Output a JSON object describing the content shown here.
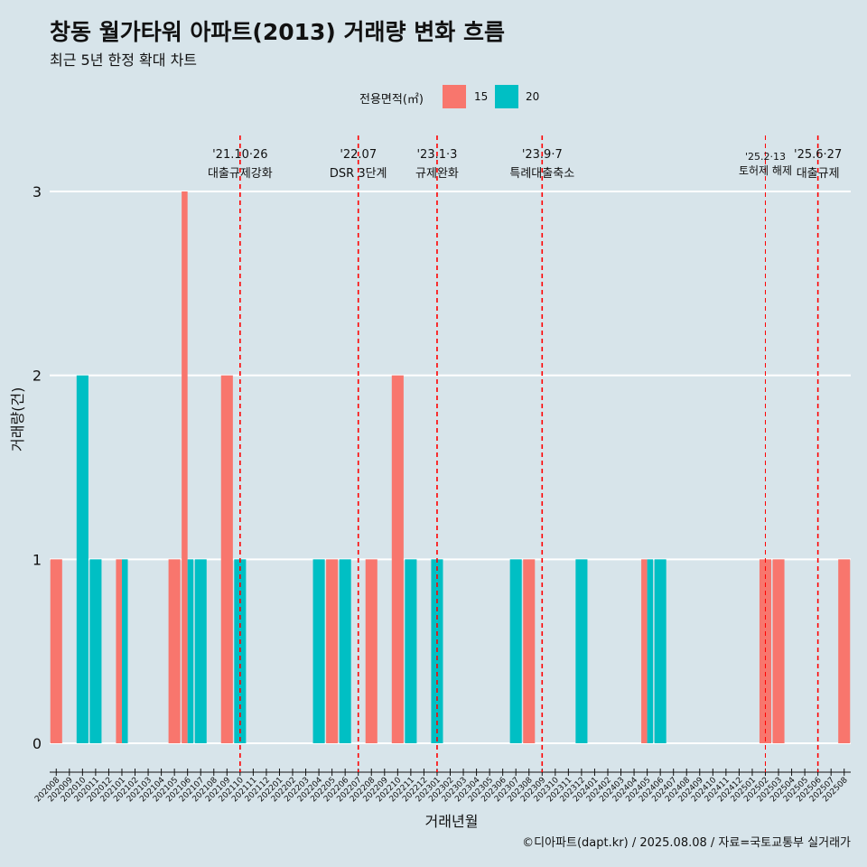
{
  "title": "창동 월가타워 아파트(2013) 거래량 변화 흐름",
  "subtitle": "최근 5년 한정 확대 차트",
  "legend": {
    "title": "전용면적(㎡)",
    "items": [
      {
        "label": "15",
        "color": "#F8766D"
      },
      {
        "label": "20",
        "color": "#00BFC4"
      }
    ]
  },
  "caption": "©디아파트(dapt.kr) / 2025.08.08 / 자료=국토교통부 실거래가",
  "chart_data": {
    "type": "bar",
    "xlabel": "거래년월",
    "ylabel": "거래량(건)",
    "ylim": [
      0,
      3
    ],
    "yticks": [
      0,
      1,
      2,
      3
    ],
    "categories": [
      "202008",
      "202009",
      "202010",
      "202011",
      "202012",
      "202101",
      "202102",
      "202103",
      "202104",
      "202105",
      "202106",
      "202107",
      "202108",
      "202109",
      "202110",
      "202111",
      "202112",
      "202201",
      "202202",
      "202203",
      "202204",
      "202205",
      "202206",
      "202207",
      "202208",
      "202209",
      "202210",
      "202211",
      "202212",
      "202301",
      "202302",
      "202303",
      "202304",
      "202305",
      "202306",
      "202307",
      "202308",
      "202309",
      "202310",
      "202311",
      "202312",
      "202401",
      "202402",
      "202403",
      "202404",
      "202405",
      "202406",
      "202407",
      "202408",
      "202409",
      "202410",
      "202411",
      "202412",
      "202501",
      "202502",
      "202503",
      "202504",
      "202505",
      "202506",
      "202507",
      "202508"
    ],
    "series": [
      {
        "name": "15",
        "color": "#F8766D",
        "values": [
          1,
          0,
          0,
          0,
          0,
          1,
          0,
          0,
          0,
          1,
          3,
          0,
          0,
          2,
          0,
          0,
          0,
          0,
          0,
          0,
          0,
          1,
          0,
          0,
          1,
          0,
          2,
          0,
          0,
          0,
          0,
          0,
          0,
          0,
          0,
          0,
          1,
          0,
          0,
          0,
          0,
          0,
          0,
          0,
          0,
          1,
          0,
          0,
          0,
          0,
          0,
          0,
          0,
          0,
          1,
          1,
          0,
          0,
          0,
          0,
          1
        ]
      },
      {
        "name": "20",
        "color": "#00BFC4",
        "values": [
          0,
          0,
          2,
          1,
          0,
          1,
          0,
          0,
          0,
          0,
          1,
          1,
          0,
          0,
          1,
          0,
          0,
          0,
          0,
          0,
          1,
          0,
          1,
          0,
          0,
          0,
          0,
          1,
          0,
          1,
          0,
          0,
          0,
          0,
          0,
          1,
          0,
          0,
          0,
          0,
          1,
          0,
          0,
          0,
          0,
          1,
          1,
          0,
          0,
          0,
          0,
          0,
          0,
          0,
          0,
          0,
          0,
          0,
          0,
          0,
          0
        ]
      }
    ],
    "events": [
      {
        "month": "202110",
        "date": "'21.10·26",
        "label": "대출규제강화"
      },
      {
        "month": "202207",
        "date": "'22.07",
        "label": "DSR 3단계"
      },
      {
        "month": "202301",
        "date": "'23.1·3",
        "label": "규제완화"
      },
      {
        "month": "202309",
        "date": "'23.9·7",
        "label": "특례대출축소"
      },
      {
        "month": "202502",
        "date": "'25.2·13",
        "label": "토허제 해제"
      },
      {
        "month": "202506",
        "date": "'25.6·27",
        "label": "대출규제"
      }
    ],
    "grid": "horizontal",
    "legend_position": "top"
  }
}
